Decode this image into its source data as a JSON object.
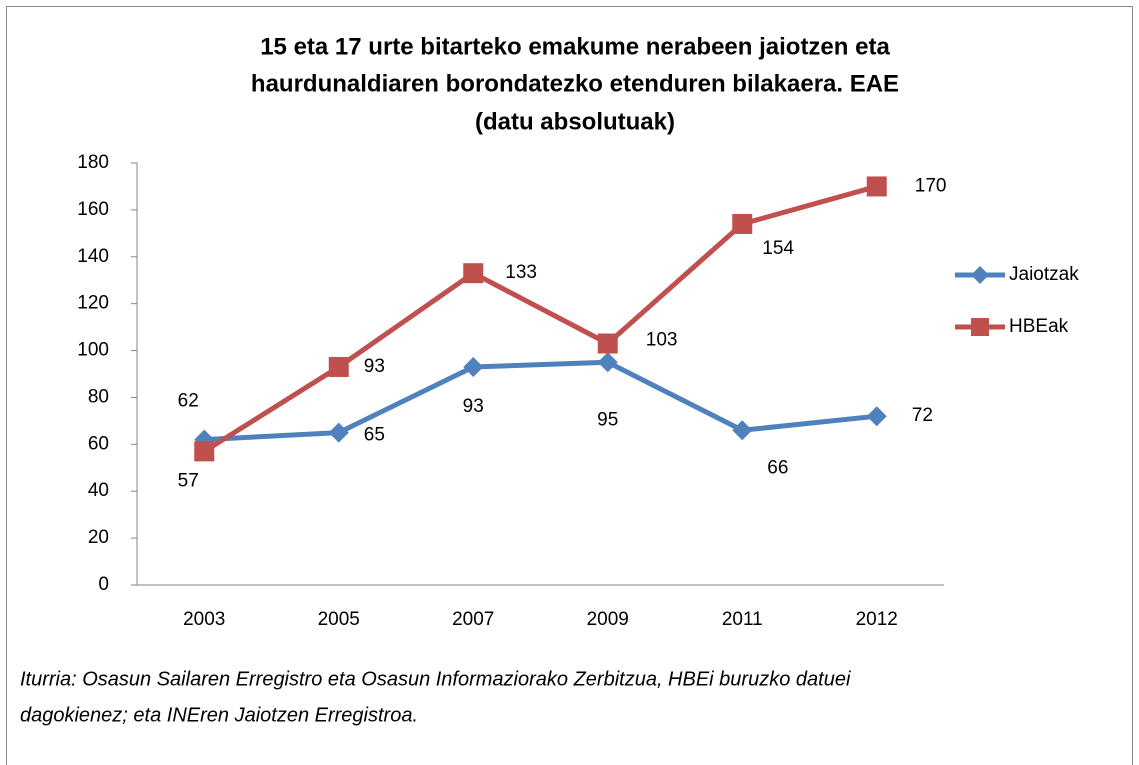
{
  "chart_data": {
    "type": "line",
    "title": [
      "15 eta 17 urte bitarteko emakume nerabeen jaiotzen eta",
      "haurdunaldiaren  borondatezko etenduren bilakaera. EAE",
      "(datu absolutuak)"
    ],
    "categories": [
      "2003",
      "2005",
      "2007",
      "2009",
      "2011",
      "2012"
    ],
    "series": [
      {
        "name": "Jaiotzak",
        "color": "#4f81bd",
        "marker": "diamond",
        "values": [
          62,
          65,
          93,
          95,
          66,
          72
        ]
      },
      {
        "name": "HBEak",
        "color": "#c0504d",
        "marker": "square",
        "values": [
          57,
          93,
          133,
          103,
          154,
          170
        ]
      }
    ],
    "ylim": [
      0,
      180
    ],
    "yticks": [
      0,
      20,
      40,
      60,
      80,
      100,
      120,
      140,
      160,
      180
    ],
    "grid": false,
    "legend": "right"
  },
  "source": [
    "Iturria: Osasun Sailaren Erregistro eta Osasun Informaziorako Zerbitzua, HBEi buruzko datuei",
    "dagokienez; eta INEren Jaiotzen Erregistroa."
  ]
}
